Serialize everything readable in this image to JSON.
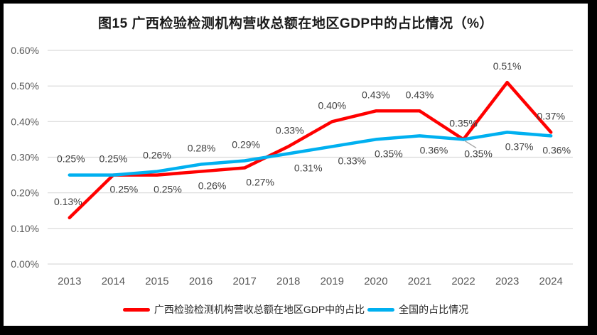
{
  "figure": {
    "frame_color": "#000000",
    "background": "#ffffff"
  },
  "chart_data": {
    "type": "line",
    "title": "图15 广西检验检测机构营收总额在地区GDP中的占比情况（%）",
    "categories": [
      "2013",
      "2014",
      "2015",
      "2016",
      "2017",
      "2018",
      "2019",
      "2020",
      "2021",
      "2022",
      "2023",
      "2024"
    ],
    "series": [
      {
        "name": "广西检验检测机构营收总额在地区GDP中的占比",
        "color": "#ff0000",
        "values": [
          0.13,
          0.25,
          0.25,
          0.26,
          0.27,
          0.33,
          0.4,
          0.43,
          0.43,
          0.35,
          0.51,
          0.37
        ],
        "labels": [
          "0.13%",
          "0.25%",
          "0.25%",
          "0.26%",
          "0.27%",
          "0.33%",
          "0.40%",
          "0.43%",
          "0.43%",
          "0.35%",
          "0.51%",
          "0.37%"
        ],
        "label_side": [
          "above",
          "below",
          "below",
          "below",
          "below",
          "above",
          "above",
          "above",
          "above",
          "above",
          "above",
          "above"
        ],
        "label_dx": [
          -2,
          15,
          15,
          16,
          22,
          2,
          0,
          0,
          0,
          0,
          0,
          0
        ]
      },
      {
        "name": "全国的占比情况",
        "color": "#00b0f0",
        "values": [
          0.25,
          0.25,
          0.26,
          0.28,
          0.29,
          0.31,
          0.33,
          0.35,
          0.36,
          0.35,
          0.37,
          0.36
        ],
        "labels": [
          "0.25%",
          "0.25%",
          "0.26%",
          "0.28%",
          "0.29%",
          "0.31%",
          "0.33%",
          "0.35%",
          "0.36%",
          "0.35%",
          "0.37%",
          "0.36%"
        ],
        "label_side": [
          "above",
          "above",
          "above",
          "above",
          "above",
          "below",
          "below",
          "below",
          "below",
          "below",
          "below",
          "below"
        ],
        "label_dx": [
          2,
          0,
          0,
          1,
          2,
          28,
          28,
          18,
          20,
          21,
          17,
          8
        ]
      }
    ],
    "ylim": [
      0,
      0.6
    ],
    "ytick_step": 0.1,
    "ytick_labels": [
      "0.00%",
      "0.10%",
      "0.20%",
      "0.30%",
      "0.40%",
      "0.50%",
      "0.60%"
    ],
    "xlabel": "",
    "ylabel": "",
    "grid": true,
    "legend_position": "bottom",
    "leader_line": {
      "series_index": 1,
      "point_index": 9,
      "color": "#a6a6a6"
    }
  },
  "colors": {
    "gridline": "#d9d9d9",
    "tick_label": "#595959",
    "data_label": "#404040",
    "title": "#1a1a1a",
    "legend_text": "#262626"
  }
}
